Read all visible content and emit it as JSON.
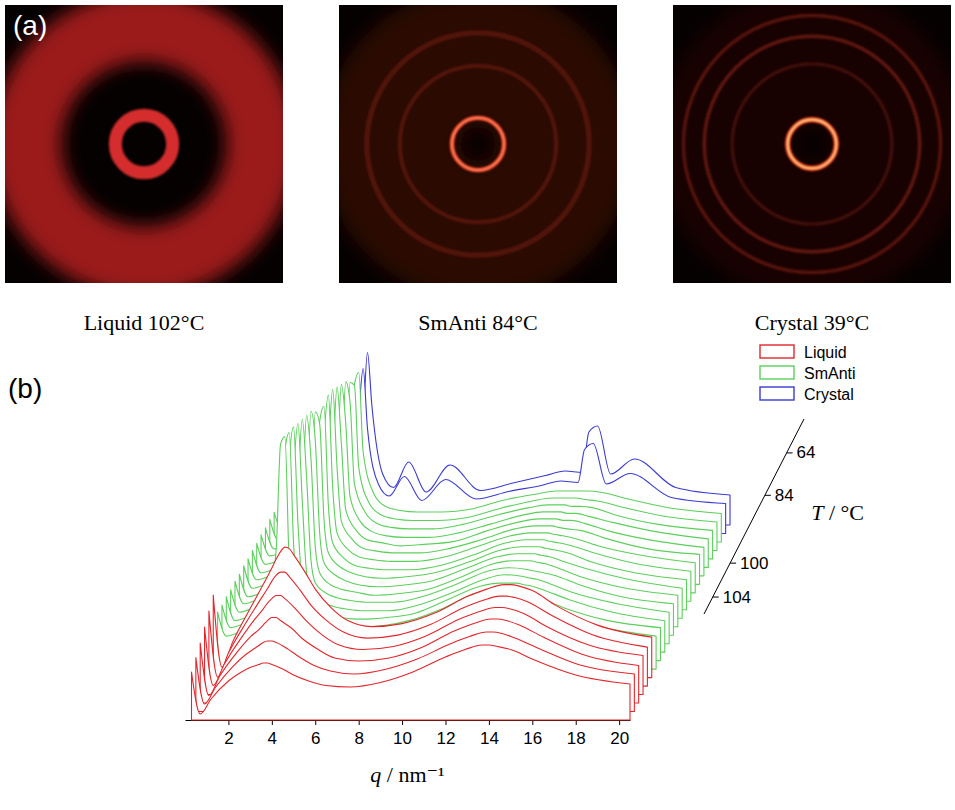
{
  "chart_data": [
    {
      "type": "image",
      "label": "(a)",
      "qlim": [
        0,
        16
      ],
      "panels": [
        {
          "title": "Liquid 102°C",
          "rings": [
            {
              "q": 13.5,
              "width": 8,
              "intensity": 0.8,
              "color": "#c02222"
            },
            {
              "q": 3.3,
              "width": 1.5,
              "intensity": 0.95,
              "color": "#e03030"
            }
          ]
        },
        {
          "title": "SmAnti 84°C",
          "rings": [
            {
              "q": 10,
              "width": 16,
              "intensity": 0.35,
              "color": "#6e160c"
            },
            {
              "q": 9,
              "width": 0.5,
              "intensity": 0.3,
              "color": "#b03020"
            },
            {
              "q": 12.8,
              "width": 0.6,
              "intensity": 0.3,
              "color": "#b03020"
            },
            {
              "q": 3.0,
              "width": 0.5,
              "intensity": 0.9,
              "color": "#ff3a20"
            },
            {
              "q": 3.0,
              "width": 0.2,
              "intensity": 1,
              "color": "#ff9a70"
            }
          ]
        },
        {
          "title": "Crystal 39°C",
          "rings": [
            {
              "q": 10,
              "width": 16,
              "intensity": 0.25,
              "color": "#4a0e08"
            },
            {
              "q": 9.2,
              "width": 0.4,
              "intensity": 0.3,
              "color": "#a02a1c"
            },
            {
              "q": 12.4,
              "width": 0.4,
              "intensity": 0.45,
              "color": "#b8321e"
            },
            {
              "q": 14.8,
              "width": 0.4,
              "intensity": 0.4,
              "color": "#b8321e"
            },
            {
              "q": 2.8,
              "width": 0.6,
              "intensity": 0.9,
              "color": "#ff3a20"
            },
            {
              "q": 2.8,
              "width": 0.25,
              "intensity": 1,
              "color": "#ffe08a"
            }
          ]
        }
      ]
    },
    {
      "type": "waterfall",
      "label": "(b)",
      "x_label": "q / nm⁻¹",
      "z_label": "T / °C",
      "legend": "upper right",
      "x": [
        0.3,
        0.7,
        1.2,
        2.0,
        2.6,
        3.0,
        3.2,
        3.4,
        3.6,
        3.8,
        4.0,
        4.5,
        5.0,
        5.7,
        6.5,
        7.6,
        9.0,
        10.5,
        12.0,
        12.9,
        13.7,
        14.0,
        14.4,
        15.0,
        16.1,
        18.0,
        20.5
      ],
      "xlim": [
        0,
        20.5
      ],
      "xticks": [
        2,
        4,
        6,
        8,
        10,
        12,
        14,
        16,
        18,
        20
      ],
      "ylim": [
        0,
        300
      ],
      "zticks": [
        104,
        100,
        84,
        64
      ],
      "series": [
        {
          "name": "Liquid",
          "color": "#e3262b",
          "T": [
            106,
            105,
            104,
            103,
            102,
            101
          ],
          "values": [
            [
              32,
              4,
              14,
              26,
              32,
              35,
              36,
              37,
              38,
              38,
              37,
              34,
              30,
              26,
              23,
              22,
              25,
              32,
              42,
              47,
              50,
              50,
              49,
              47,
              40,
              30,
              24
            ],
            [
              36,
              5,
              16,
              30,
              38,
              42,
              44,
              46,
              47,
              47,
              46,
              42,
              37,
              31,
              27,
              25,
              28,
              35,
              45,
              50,
              53,
              53,
              52,
              49,
              42,
              31,
              25
            ],
            [
              40,
              5,
              18,
              34,
              44,
              49,
              52,
              55,
              57,
              57,
              55,
              50,
              43,
              36,
              30,
              28,
              30,
              37,
              48,
              53,
              56,
              56,
              55,
              52,
              44,
              32,
              25
            ],
            [
              45,
              6,
              20,
              38,
              50,
              57,
              61,
              64,
              66,
              66,
              64,
              57,
              49,
              40,
              33,
              30,
              32,
              39,
              50,
              55,
              58,
              58,
              57,
              54,
              45,
              33,
              26
            ],
            [
              50,
              6,
              22,
              42,
              56,
              65,
              70,
              74,
              76,
              76,
              73,
              64,
              54,
              44,
              36,
              32,
              34,
              41,
              52,
              57,
              60,
              60,
              59,
              56,
              47,
              34,
              26
            ],
            [
              55,
              7,
              24,
              46,
              62,
              73,
              79,
              84,
              87,
              86,
              82,
              71,
              59,
              47,
              38,
              34,
              36,
              43,
              54,
              59,
              62,
              62,
              61,
              58,
              48,
              35,
              27
            ]
          ]
        },
        {
          "name": "SmAnti",
          "color": "#5ccf5c",
          "T": [
            100,
            98,
            96,
            94,
            92,
            90,
            88,
            86,
            84,
            80,
            76,
            72,
            68,
            64,
            60,
            56
          ],
          "values": [
            [
              38,
              22,
              24,
              30,
              42,
              80,
              150,
              155,
              70,
              42,
              34,
              28,
              25,
              23,
              22,
              23,
              27,
              36,
              46,
              48,
              47,
              46,
              45,
              42,
              36,
              28,
              22
            ],
            [
              37,
              22,
              24,
              30,
              41,
              72,
              140,
              152,
              78,
              43,
              34,
              28,
              25,
              23,
              22,
              23,
              27,
              35,
              45,
              47,
              46,
              45,
              44,
              41,
              35,
              27,
              22
            ],
            [
              37,
              21,
              23,
              29,
              40,
              65,
              128,
              150,
              86,
              45,
              34,
              28,
              25,
              23,
              22,
              23,
              26,
              35,
              44,
              46,
              46,
              45,
              44,
              41,
              35,
              27,
              21
            ],
            [
              36,
              21,
              23,
              29,
              39,
              58,
              115,
              147,
              95,
              47,
              35,
              28,
              25,
              23,
              22,
              22,
              26,
              34,
              43,
              46,
              45,
              44,
              43,
              40,
              34,
              27,
              21
            ],
            [
              36,
              21,
              23,
              28,
              38,
              52,
              100,
              144,
              105,
              50,
              35,
              28,
              25,
              23,
              22,
              22,
              26,
              34,
              43,
              45,
              44,
              43,
              42,
              40,
              34,
              26,
              21
            ],
            [
              35,
              20,
              22,
              28,
              37,
              47,
              85,
              141,
              112,
              53,
              36,
              28,
              25,
              23,
              21,
              22,
              25,
              33,
              42,
              44,
              44,
              43,
              42,
              39,
              33,
              26,
              21
            ],
            [
              35,
              20,
              22,
              27,
              36,
              44,
              72,
              138,
              118,
              57,
              37,
              29,
              25,
              22,
              21,
              22,
              25,
              33,
              41,
              43,
              43,
              42,
              41,
              38,
              33,
              26,
              20
            ],
            [
              34,
              20,
              22,
              27,
              35,
              42,
              62,
              132,
              124,
              60,
              38,
              29,
              25,
              22,
              21,
              22,
              25,
              32,
              40,
              42,
              42,
              41,
              40,
              38,
              32,
              25,
              20
            ],
            [
              34,
              19,
              21,
              26,
              34,
              40,
              55,
              120,
              130,
              64,
              39,
              29,
              24,
              22,
              21,
              21,
              24,
              31,
              39,
              41,
              41,
              40,
              39,
              37,
              32,
              25,
              20
            ],
            [
              33,
              19,
              21,
              26,
              33,
              38,
              50,
              105,
              132,
              70,
              40,
              29,
              24,
              22,
              21,
              21,
              24,
              31,
              38,
              40,
              40,
              39,
              38,
              36,
              31,
              25,
              20
            ],
            [
              33,
              19,
              21,
              25,
              32,
              37,
              46,
              90,
              130,
              78,
              42,
              30,
              24,
              22,
              21,
              21,
              24,
              30,
              37,
              39,
              39,
              38,
              37,
              36,
              31,
              24,
              20
            ],
            [
              32,
              18,
              20,
              25,
              31,
              36,
              43,
              78,
              126,
              88,
              44,
              30,
              24,
              22,
              20,
              21,
              23,
              30,
              36,
              38,
              38,
              37,
              37,
              35,
              30,
              24,
              19
            ],
            [
              32,
              18,
              20,
              24,
              30,
              35,
              41,
              68,
              122,
              96,
              47,
              30,
              24,
              21,
              20,
              20,
              23,
              29,
              35,
              37,
              37,
              36,
              36,
              34,
              30,
              24,
              19
            ],
            [
              31,
              18,
              20,
              24,
              30,
              34,
              40,
              60,
              118,
              104,
              50,
              31,
              24,
              21,
              20,
              20,
              23,
              29,
              34,
              36,
              36,
              35,
              35,
              34,
              29,
              23,
              19
            ],
            [
              31,
              17,
              19,
              23,
              29,
              33,
              38,
              54,
              112,
              110,
              55,
              31,
              24,
              21,
              20,
              20,
              22,
              28,
              33,
              35,
              35,
              35,
              34,
              33,
              29,
              23,
              19
            ],
            [
              30,
              17,
              19,
              23,
              28,
              32,
              37,
              50,
              105,
              113,
              60,
              32,
              24,
              21,
              20,
              20,
              22,
              28,
              32,
              34,
              34,
              34,
              34,
              33,
              29,
              23,
              19
            ]
          ]
        },
        {
          "name": "Crystal",
          "color": "#3a3ad0",
          "T": [
            48,
            39
          ],
          "values": [
            [
              30,
              17,
              19,
              23,
              28,
              32,
              36,
              45,
              80,
              110,
              70,
              33,
              25,
              38,
              22,
              36,
              23,
              28,
              32,
              35,
              34,
              56,
              60,
              33,
              40,
              24,
              20
            ],
            [
              29,
              16,
              18,
              22,
              27,
              31,
              35,
              42,
              70,
              115,
              80,
              34,
              25,
              42,
              22,
              40,
              23,
              28,
              33,
              36,
              35,
              62,
              66,
              34,
              44,
              25,
              20
            ]
          ]
        }
      ]
    }
  ]
}
